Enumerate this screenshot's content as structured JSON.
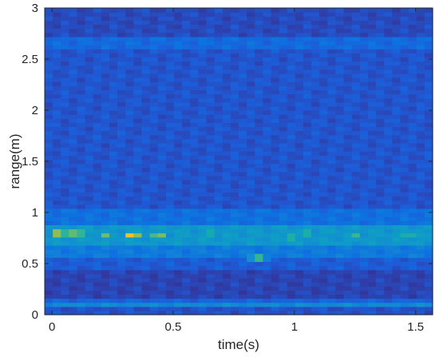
{
  "chart_data": {
    "type": "heatmap",
    "title": "",
    "xlabel": "time(s)",
    "ylabel": "range(m)",
    "xlim": [
      -0.03,
      1.57
    ],
    "ylim": [
      0,
      3
    ],
    "x_ticks": [
      0,
      0.5,
      1,
      1.5
    ],
    "x_tick_labels": [
      "0",
      "0.5",
      "1",
      "1.5"
    ],
    "y_ticks": [
      0,
      0.5,
      1,
      1.5,
      2,
      2.5,
      3
    ],
    "y_tick_labels": [
      "0",
      "0.5",
      "1",
      "1.5",
      "2",
      "2.5",
      "3"
    ],
    "colormap": "parula",
    "colormap_stops": [
      "#352a87",
      "#2f3ea8",
      "#1f5ad6",
      "#0d73e0",
      "#1487d4",
      "#0f9bc8",
      "#10aab4",
      "#38b690",
      "#74bd68",
      "#b0bd42",
      "#e3b82a",
      "#fdc531",
      "#f9fb0e"
    ],
    "intensity_scale": [
      0,
      1
    ],
    "time_start": 0,
    "time_end": 1.5,
    "range_bands": [
      {
        "range": [
          0.0,
          0.08
        ],
        "intensity": 0.14
      },
      {
        "range": [
          0.08,
          0.13
        ],
        "intensity": 0.34
      },
      {
        "range": [
          0.13,
          0.17
        ],
        "intensity": 0.2
      },
      {
        "range": [
          0.17,
          0.45
        ],
        "intensity": 0.1
      },
      {
        "range": [
          0.45,
          0.55
        ],
        "intensity": 0.17
      },
      {
        "range": [
          0.55,
          0.68
        ],
        "intensity": 0.28
      },
      {
        "range": [
          0.68,
          0.87
        ],
        "intensity": 0.4
      },
      {
        "range": [
          0.87,
          1.05
        ],
        "intensity": 0.24
      },
      {
        "range": [
          1.05,
          2.62
        ],
        "intensity": 0.15
      },
      {
        "range": [
          2.62,
          2.72
        ],
        "intensity": 0.22
      },
      {
        "range": [
          2.72,
          3.0
        ],
        "intensity": 0.12
      }
    ],
    "hotspots": [
      {
        "time": 0.03,
        "range": 0.8,
        "intensity": 0.9
      },
      {
        "time": 0.1,
        "range": 0.8,
        "intensity": 0.85
      },
      {
        "time": 0.22,
        "range": 0.78,
        "intensity": 0.66
      },
      {
        "time": 0.33,
        "range": 0.78,
        "intensity": 0.92
      },
      {
        "time": 0.44,
        "range": 0.78,
        "intensity": 0.74
      },
      {
        "time": 0.65,
        "range": 0.8,
        "intensity": 0.62
      },
      {
        "time": 0.85,
        "range": 0.56,
        "intensity": 0.7
      },
      {
        "time": 0.98,
        "range": 0.76,
        "intensity": 0.66
      },
      {
        "time": 1.05,
        "range": 0.8,
        "intensity": 0.64
      },
      {
        "time": 1.25,
        "range": 0.77,
        "intensity": 0.62
      },
      {
        "time": 1.47,
        "range": 0.78,
        "intensity": 0.6
      }
    ]
  }
}
